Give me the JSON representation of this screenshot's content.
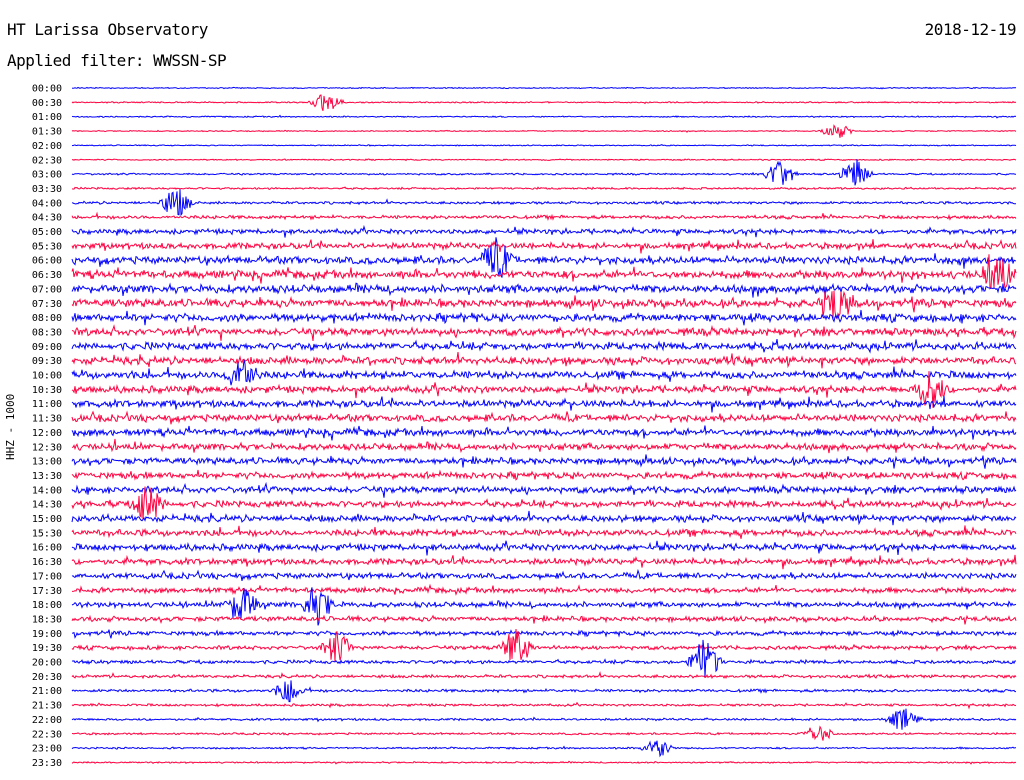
{
  "header": {
    "title": "HT Larissa Observatory",
    "date": "2018-12-19",
    "filter": "Applied filter: WWSSN-SP"
  },
  "chart_data": {
    "type": "line",
    "title": "HT Larissa Observatory",
    "ylabel": "HHZ - 1000",
    "row_labels": [
      "00:00",
      "00:30",
      "01:00",
      "01:30",
      "02:00",
      "02:30",
      "03:00",
      "03:30",
      "04:00",
      "04:30",
      "05:00",
      "05:30",
      "06:00",
      "06:30",
      "07:00",
      "07:30",
      "08:00",
      "08:30",
      "09:00",
      "09:30",
      "10:00",
      "10:30",
      "11:00",
      "11:30",
      "12:00",
      "12:30",
      "13:00",
      "13:30",
      "14:00",
      "14:30",
      "15:00",
      "15:30",
      "16:00",
      "16:30",
      "17:00",
      "17:30",
      "18:00",
      "18:30",
      "19:00",
      "19:30",
      "20:00",
      "20:30",
      "21:00",
      "21:30",
      "22:00",
      "22:30",
      "23:00",
      "23:30"
    ],
    "row_colors": [
      "#0000ff",
      "#ff0040"
    ],
    "row_amplitude": [
      0.5,
      0.6,
      0.6,
      0.5,
      0.5,
      0.6,
      0.8,
      0.9,
      1.2,
      1.6,
      2.2,
      2.8,
      3.4,
      3.6,
      3.6,
      3.6,
      3.6,
      3.4,
      3.4,
      3.4,
      3.4,
      3.2,
      3.2,
      3.2,
      3.2,
      3.0,
      3.0,
      3.0,
      3.0,
      3.0,
      3.0,
      3.0,
      3.0,
      2.8,
      2.6,
      2.4,
      2.4,
      2.2,
      2.0,
      1.8,
      1.6,
      1.4,
      1.3,
      1.1,
      1.0,
      0.9,
      0.8,
      0.7
    ],
    "events": [
      {
        "row": 1,
        "x": 0.27,
        "amp": 3.0
      },
      {
        "row": 3,
        "x": 0.81,
        "amp": 2.0
      },
      {
        "row": 6,
        "x": 0.75,
        "amp": 4.0
      },
      {
        "row": 6,
        "x": 0.83,
        "amp": 4.0
      },
      {
        "row": 8,
        "x": 0.11,
        "amp": 4.0
      },
      {
        "row": 12,
        "x": 0.45,
        "amp": 5.0
      },
      {
        "row": 13,
        "x": 0.98,
        "amp": 5.0
      },
      {
        "row": 15,
        "x": 0.81,
        "amp": 5.0
      },
      {
        "row": 20,
        "x": 0.18,
        "amp": 5.0
      },
      {
        "row": 21,
        "x": 0.91,
        "amp": 5.0
      },
      {
        "row": 29,
        "x": 0.08,
        "amp": 5.0
      },
      {
        "row": 36,
        "x": 0.18,
        "amp": 5.0
      },
      {
        "row": 36,
        "x": 0.26,
        "amp": 5.0
      },
      {
        "row": 39,
        "x": 0.28,
        "amp": 4.0
      },
      {
        "row": 39,
        "x": 0.47,
        "amp": 5.0
      },
      {
        "row": 40,
        "x": 0.67,
        "amp": 6.0
      },
      {
        "row": 42,
        "x": 0.23,
        "amp": 3.0
      },
      {
        "row": 44,
        "x": 0.88,
        "amp": 3.0
      },
      {
        "row": 45,
        "x": 0.79,
        "amp": 2.5
      },
      {
        "row": 46,
        "x": 0.62,
        "amp": 2.5
      }
    ],
    "colors": {
      "odd": "#0000ff",
      "even": "#ff0040",
      "text": "#000000"
    }
  }
}
